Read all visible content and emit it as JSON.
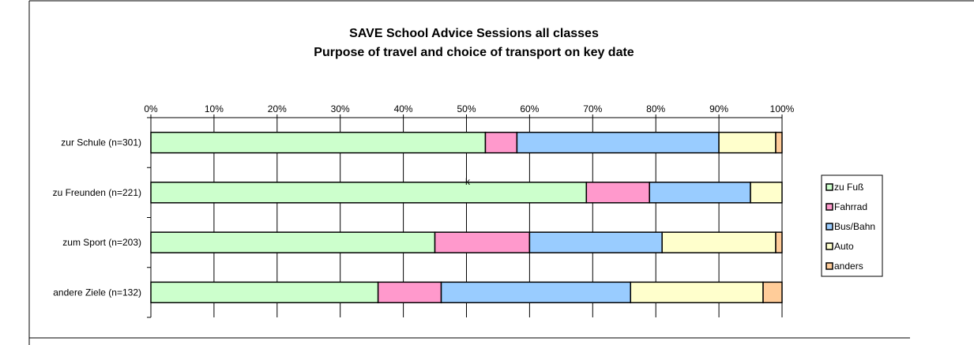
{
  "colors": {
    "zu_fuss": "#ccffcc",
    "fahrrad": "#ff99cc",
    "bus_bahn": "#99ccff",
    "auto": "#ffffcc",
    "anders": "#ffcc99"
  },
  "chart_data": {
    "type": "bar",
    "orientation": "horizontal",
    "stacked": "percent",
    "title": "SAVE School Advice Sessions all classes",
    "subtitle": "Purpose of travel and choice of transport on key date",
    "xlabel": "",
    "ylabel": "",
    "xlim": [
      0,
      100
    ],
    "x_ticks": [
      "0%",
      "10%",
      "20%",
      "30%",
      "40%",
      "50%",
      "60%",
      "70%",
      "80%",
      "90%",
      "100%"
    ],
    "categories": [
      "zur Schule (n=301)",
      "zu Freunden (n=221)",
      "zum Sport (n=203)",
      "andere Ziele (n=132)"
    ],
    "series": [
      {
        "name": "zu Fuß",
        "values": [
          53,
          69,
          45,
          36
        ]
      },
      {
        "name": "Fahrrad",
        "values": [
          5,
          10,
          15,
          10
        ]
      },
      {
        "name": "Bus/Bahn",
        "values": [
          32,
          16,
          21,
          30
        ]
      },
      {
        "name": "Auto",
        "values": [
          9,
          5,
          18,
          21
        ]
      },
      {
        "name": "anders",
        "values": [
          1,
          0,
          1,
          3
        ]
      }
    ],
    "annotations": [
      "k"
    ],
    "grid": true,
    "legend_position": "right"
  }
}
